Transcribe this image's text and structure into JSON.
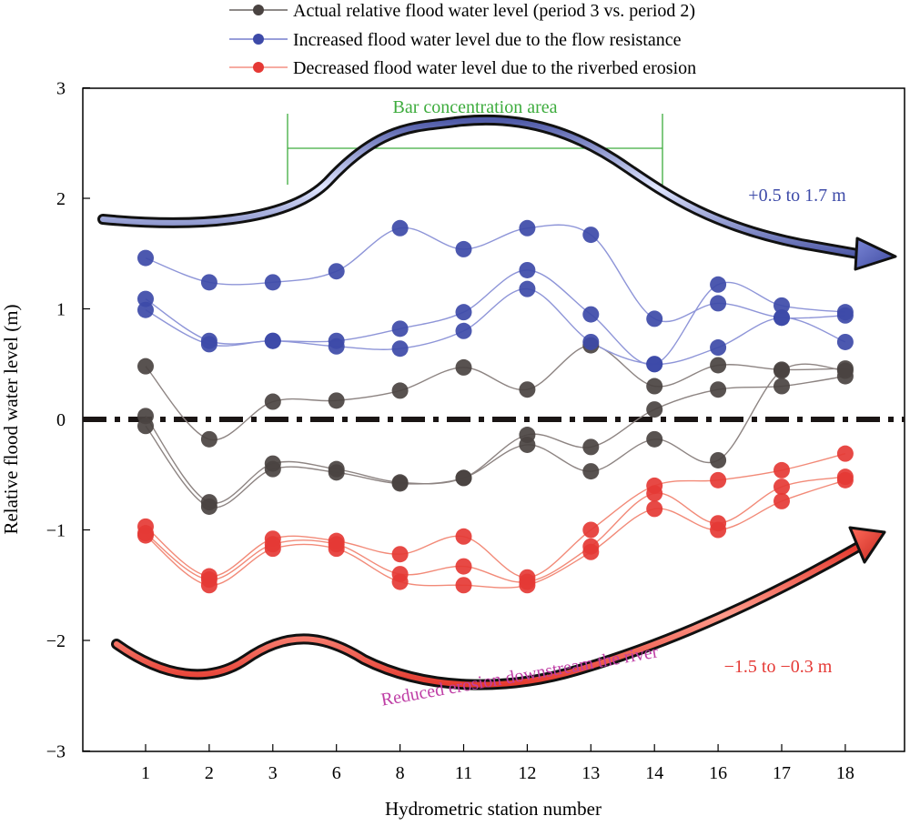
{
  "chart_data": {
    "type": "scatter",
    "xlabel": "Hydrometric station number",
    "ylabel": "Relative flood water level (m)",
    "categories": [
      "1",
      "2",
      "3",
      "6",
      "8",
      "11",
      "12",
      "13",
      "14",
      "16",
      "17",
      "18"
    ],
    "ylim": [
      -3,
      3
    ],
    "yticks": [
      "3",
      "2",
      "1",
      "0",
      "−1",
      "−2",
      "−3"
    ],
    "grid": false,
    "legend_position": "top",
    "colors": {
      "actual": "#4a4341",
      "increased": "#3d4aa8",
      "decreased": "#e53935",
      "bar_area": "#3dac3d",
      "purple": "#bf3fa6",
      "zero_line": "#1a1514"
    },
    "series": [
      {
        "name": "Actual relative flood water level (period 3 vs. period 2)",
        "group": "actual",
        "values": [
          0.48,
          -0.18,
          0.16,
          0.17,
          0.26,
          0.47,
          0.27,
          0.67,
          0.3,
          0.49,
          0.45,
          0.46
        ]
      },
      {
        "name": "",
        "group": "actual",
        "values": [
          0.03,
          -0.75,
          -0.4,
          -0.45,
          -0.57,
          -0.53,
          -0.14,
          -0.25,
          0.09,
          0.27,
          0.3,
          0.39
        ]
      },
      {
        "name": "",
        "group": "actual",
        "values": [
          -0.06,
          -0.79,
          -0.45,
          -0.48,
          -0.58,
          -0.53,
          -0.23,
          -0.47,
          -0.18,
          -0.37,
          0.44,
          0.44
        ]
      },
      {
        "name": "Increased flood water level due to the flow resistance",
        "group": "increased",
        "values": [
          1.46,
          1.24,
          1.24,
          1.34,
          1.73,
          1.54,
          1.73,
          1.67,
          0.91,
          1.05,
          0.92,
          0.94
        ]
      },
      {
        "name": "",
        "group": "increased",
        "values": [
          1.09,
          0.71,
          0.71,
          0.71,
          0.82,
          0.97,
          1.35,
          0.95,
          0.5,
          1.22,
          1.03,
          0.97
        ]
      },
      {
        "name": "",
        "group": "increased",
        "values": [
          0.99,
          0.68,
          0.71,
          0.66,
          0.64,
          0.8,
          1.18,
          0.7,
          0.5,
          0.65,
          0.92,
          0.7
        ]
      },
      {
        "name": "Decreased flood water level due to the riverbed erosion",
        "group": "decreased",
        "values": [
          -0.97,
          -1.42,
          -1.08,
          -1.1,
          -1.22,
          -1.06,
          -1.43,
          -1.0,
          -0.6,
          -0.55,
          -0.46,
          -0.31
        ]
      },
      {
        "name": "",
        "group": "decreased",
        "values": [
          -1.03,
          -1.45,
          -1.13,
          -1.13,
          -1.4,
          -1.33,
          -1.47,
          -1.15,
          -0.67,
          -0.94,
          -0.61,
          -0.52
        ]
      },
      {
        "name": "",
        "group": "decreased",
        "values": [
          -1.05,
          -1.5,
          -1.17,
          -1.17,
          -1.47,
          -1.5,
          -1.5,
          -1.2,
          -0.81,
          -1.0,
          -0.74,
          -0.55
        ]
      }
    ],
    "annotations": {
      "bar_area": "Bar concentration area",
      "increase_range": "+0.5 to 1.7 m",
      "decrease_range": "−1.5 to −0.3 m",
      "downstream": "Reduced erosion downstream the river"
    }
  }
}
